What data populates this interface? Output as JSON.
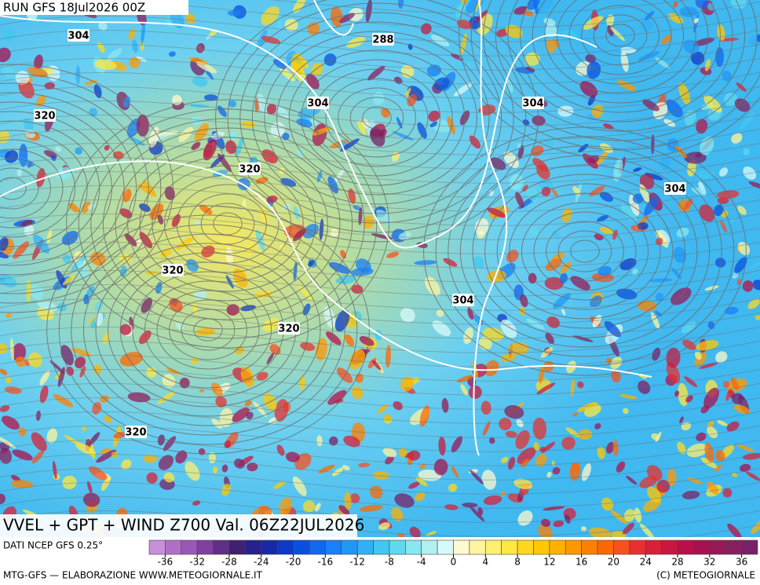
{
  "header": "RUN GFS 18Jul2026 00Z",
  "contour_labels": [
    "304",
    "288",
    "320",
    "304",
    "304",
    "320",
    "304",
    "320",
    "304",
    "320",
    "320"
  ],
  "title": "VVEL + GPT + WIND Z700 Val. 06Z22JUL2026",
  "source": "DATI NCEP GFS 0.25°",
  "colorbar": {
    "ticks": [
      -36,
      -32,
      -28,
      -24,
      -20,
      -16,
      -12,
      -8,
      -4,
      0,
      4,
      8,
      12,
      16,
      20,
      24,
      28,
      32,
      36
    ],
    "range": [
      -38,
      38
    ],
    "colors": [
      "#c890d8",
      "#b070c8",
      "#9858b8",
      "#8040a0",
      "#603088",
      "#402070",
      "#28208c",
      "#1828a8",
      "#1038c8",
      "#0850e0",
      "#1068f0",
      "#1880f8",
      "#2098f8",
      "#30b0f8",
      "#40c8f0",
      "#60d8f0",
      "#88e8f0",
      "#b0f0f0",
      "#d8fafa",
      "#fffad0",
      "#fff4a0",
      "#fff070",
      "#ffe840",
      "#ffd820",
      "#ffc800",
      "#ffb000",
      "#ff9800",
      "#ff8000",
      "#ff6800",
      "#f85020",
      "#e83030",
      "#d82038",
      "#c81840",
      "#b81048",
      "#a81050",
      "#981858",
      "#882060",
      "#782068"
    ]
  },
  "footer_left": "MTG-GFS — ELABORAZIONE WWW.METEOGIORNALE.IT",
  "footer_right": "(C) METEOGIORNALE"
}
